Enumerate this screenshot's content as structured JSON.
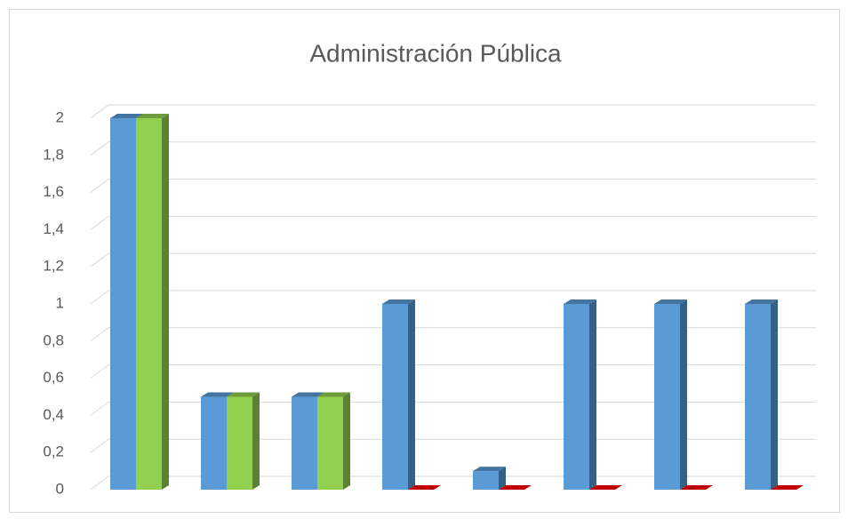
{
  "chart_data": {
    "type": "bar3d",
    "title": "Administración Pública",
    "categories": [
      null,
      null,
      null,
      null,
      null,
      null,
      null,
      null
    ],
    "series": [
      {
        "color": "#5b9bd5",
        "values": [
          2,
          0.5,
          0.5,
          1,
          0.1,
          1,
          1,
          1
        ]
      },
      {
        "color": "#92d050",
        "colors": [
          "#92d050",
          "#92d050",
          "#92d050",
          "#c00000",
          "#c00000",
          "#c00000",
          "#c00000",
          "#c00000"
        ],
        "values": [
          2,
          0.5,
          0.5,
          0,
          0,
          0,
          0,
          0
        ]
      }
    ],
    "ylim": [
      0,
      2
    ],
    "yticks": [
      0,
      {
        "value": 0.2,
        "label": "0,2"
      },
      {
        "value": 0.4,
        "label": "0,4"
      },
      {
        "value": 0.6,
        "label": "0,6"
      },
      {
        "value": 0.8,
        "label": "0,8"
      },
      1,
      {
        "value": 1.2,
        "label": "1,2"
      },
      {
        "value": 1.4,
        "label": "1,4"
      },
      {
        "value": 1.6,
        "label": "1,6"
      },
      {
        "value": 1.8,
        "label": "1,8"
      },
      2
    ],
    "grid": true
  }
}
